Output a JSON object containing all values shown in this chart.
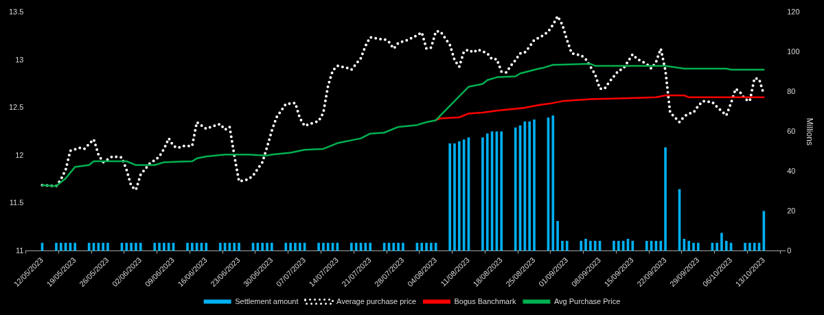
{
  "chart_data": {
    "type": "line",
    "y2label": "Millions",
    "legend": "bottom",
    "xlim": [
      "2023-05-12",
      "2023-10-14"
    ],
    "xticks": [
      {
        "value": "2023-05-12",
        "label": "12/05/2023"
      },
      {
        "value": "2023-05-19",
        "label": "19/05/2023"
      },
      {
        "value": "2023-05-26",
        "label": "26/05/2023"
      },
      {
        "value": "2023-06-02",
        "label": "02/06/2023"
      },
      {
        "value": "2023-06-09",
        "label": "09/06/2023"
      },
      {
        "value": "2023-06-16",
        "label": "16/06/2023"
      },
      {
        "value": "2023-06-23",
        "label": "23/06/2023"
      },
      {
        "value": "2023-06-30",
        "label": "30/06/2023"
      },
      {
        "value": "2023-07-07",
        "label": "07/07/2023"
      },
      {
        "value": "2023-07-14",
        "label": "14/07/2023"
      },
      {
        "value": "2023-07-21",
        "label": "21/07/2023"
      },
      {
        "value": "2023-07-28",
        "label": "28/07/2023"
      },
      {
        "value": "2023-08-04",
        "label": "04/08/2023"
      },
      {
        "value": "2023-08-11",
        "label": "11/08/2023"
      },
      {
        "value": "2023-08-18",
        "label": "18/08/2023"
      },
      {
        "value": "2023-08-25",
        "label": "25/08/2023"
      },
      {
        "value": "2023-09-01",
        "label": "01/09/2023"
      },
      {
        "value": "2023-09-08",
        "label": "08/09/2023"
      },
      {
        "value": "2023-09-15",
        "label": "15/09/2023"
      },
      {
        "value": "2023-09-22",
        "label": "22/09/2023"
      },
      {
        "value": "2023-09-29",
        "label": "29/09/2023"
      },
      {
        "value": "2023-10-06",
        "label": "06/10/2023"
      },
      {
        "value": "2023-10-13",
        "label": "13/10/2023"
      }
    ],
    "ylim": [
      11,
      13.5
    ],
    "yticks": [
      11,
      11.5,
      12,
      12.5,
      13,
      13.5
    ],
    "y2lim": [
      0,
      120
    ],
    "y2ticks": [
      0,
      20,
      40,
      60,
      80,
      100,
      120
    ],
    "series": [
      {
        "name": "Settlement amount",
        "type": "bar",
        "axis": "y2",
        "color": "#00b0f0",
        "x": [
          "2023-05-12",
          "2023-05-15",
          "2023-05-16",
          "2023-05-17",
          "2023-05-18",
          "2023-05-19",
          "2023-05-22",
          "2023-05-23",
          "2023-05-24",
          "2023-05-25",
          "2023-05-26",
          "2023-05-29",
          "2023-05-30",
          "2023-05-31",
          "2023-06-01",
          "2023-06-02",
          "2023-06-05",
          "2023-06-06",
          "2023-06-07",
          "2023-06-08",
          "2023-06-09",
          "2023-06-12",
          "2023-06-13",
          "2023-06-14",
          "2023-06-15",
          "2023-06-16",
          "2023-06-19",
          "2023-06-20",
          "2023-06-21",
          "2023-06-22",
          "2023-06-23",
          "2023-06-26",
          "2023-06-27",
          "2023-06-28",
          "2023-06-29",
          "2023-06-30",
          "2023-07-03",
          "2023-07-04",
          "2023-07-05",
          "2023-07-06",
          "2023-07-07",
          "2023-07-10",
          "2023-07-11",
          "2023-07-12",
          "2023-07-13",
          "2023-07-14",
          "2023-07-17",
          "2023-07-18",
          "2023-07-19",
          "2023-07-20",
          "2023-07-21",
          "2023-07-24",
          "2023-07-25",
          "2023-07-26",
          "2023-07-27",
          "2023-07-28",
          "2023-07-31",
          "2023-08-01",
          "2023-08-02",
          "2023-08-03",
          "2023-08-04",
          "2023-08-07",
          "2023-08-08",
          "2023-08-09",
          "2023-08-10",
          "2023-08-11",
          "2023-08-14",
          "2023-08-15",
          "2023-08-16",
          "2023-08-17",
          "2023-08-18",
          "2023-08-21",
          "2023-08-22",
          "2023-08-23",
          "2023-08-24",
          "2023-08-25",
          "2023-08-28",
          "2023-08-29",
          "2023-08-30",
          "2023-08-31",
          "2023-09-01",
          "2023-09-04",
          "2023-09-05",
          "2023-09-06",
          "2023-09-07",
          "2023-09-08",
          "2023-09-11",
          "2023-09-12",
          "2023-09-13",
          "2023-09-14",
          "2023-09-15",
          "2023-09-18",
          "2023-09-19",
          "2023-09-20",
          "2023-09-21",
          "2023-09-22",
          "2023-09-25",
          "2023-09-26",
          "2023-09-27",
          "2023-09-28",
          "2023-09-29",
          "2023-10-02",
          "2023-10-03",
          "2023-10-04",
          "2023-10-05",
          "2023-10-06",
          "2023-10-09",
          "2023-10-10",
          "2023-10-11",
          "2023-10-12",
          "2023-10-13"
        ],
        "values": [
          4,
          4,
          4,
          4,
          4,
          4,
          4,
          4,
          4,
          4,
          4,
          4,
          4,
          4,
          4,
          4,
          4,
          4,
          4,
          4,
          4,
          4,
          4,
          4,
          4,
          4,
          4,
          4,
          4,
          4,
          4,
          4,
          4,
          4,
          4,
          4,
          4,
          4,
          4,
          4,
          4,
          4,
          4,
          4,
          4,
          4,
          4,
          4,
          4,
          4,
          4,
          4,
          4,
          4,
          4,
          4,
          4,
          4,
          4,
          4,
          4,
          54,
          54,
          55,
          56,
          57,
          57,
          59,
          60,
          60,
          60,
          62,
          63,
          65,
          65,
          66,
          67,
          68,
          15,
          5,
          5,
          5,
          6,
          5,
          5,
          5,
          5,
          5,
          5,
          6,
          5,
          5,
          5,
          5,
          5,
          52,
          31,
          6,
          5,
          4,
          4,
          4,
          4,
          9,
          5,
          4,
          4,
          4,
          4,
          4,
          20
        ]
      },
      {
        "name": "Average purchase price",
        "line_style": "dotted",
        "color": "#ffffff",
        "x": [
          "2023-05-12",
          "2023-05-15",
          "2023-05-16",
          "2023-05-17",
          "2023-05-18",
          "2023-05-20",
          "2023-05-21",
          "2023-05-23",
          "2023-05-24",
          "2023-05-25",
          "2023-05-27",
          "2023-05-29",
          "2023-05-30",
          "2023-05-31",
          "2023-06-01",
          "2023-06-02",
          "2023-06-04",
          "2023-06-05",
          "2023-06-06",
          "2023-06-07",
          "2023-06-08",
          "2023-06-09",
          "2023-06-10",
          "2023-06-11",
          "2023-06-13",
          "2023-06-14",
          "2023-06-16",
          "2023-06-17",
          "2023-06-19",
          "2023-06-20",
          "2023-06-21",
          "2023-06-22",
          "2023-06-23",
          "2023-06-25",
          "2023-06-26",
          "2023-06-28",
          "2023-06-29",
          "2023-06-30",
          "2023-07-01",
          "2023-07-03",
          "2023-07-05",
          "2023-07-06",
          "2023-07-07",
          "2023-07-08",
          "2023-07-10",
          "2023-07-11",
          "2023-07-12",
          "2023-07-13",
          "2023-07-14",
          "2023-07-16",
          "2023-07-17",
          "2023-07-18",
          "2023-07-19",
          "2023-07-20",
          "2023-07-21",
          "2023-07-23",
          "2023-07-24",
          "2023-07-25",
          "2023-07-26",
          "2023-07-27",
          "2023-07-29",
          "2023-07-31",
          "2023-08-01",
          "2023-08-02",
          "2023-08-03",
          "2023-08-04",
          "2023-08-05",
          "2023-08-06",
          "2023-08-07",
          "2023-08-08",
          "2023-08-09",
          "2023-08-10",
          "2023-08-11",
          "2023-08-12",
          "2023-08-13",
          "2023-08-15",
          "2023-08-16",
          "2023-08-17",
          "2023-08-18",
          "2023-08-19",
          "2023-08-20",
          "2023-08-21",
          "2023-08-22",
          "2023-08-23",
          "2023-08-24",
          "2023-08-25",
          "2023-08-27",
          "2023-08-28",
          "2023-08-29",
          "2023-08-30",
          "2023-08-31",
          "2023-09-01",
          "2023-09-02",
          "2023-09-04",
          "2023-09-05",
          "2023-09-06",
          "2023-09-07",
          "2023-09-08",
          "2023-09-09",
          "2023-09-10",
          "2023-09-11",
          "2023-09-12",
          "2023-09-13",
          "2023-09-15",
          "2023-09-16",
          "2023-09-18",
          "2023-09-19",
          "2023-09-20",
          "2023-09-21",
          "2023-09-22",
          "2023-09-23",
          "2023-09-24",
          "2023-09-25",
          "2023-09-26",
          "2023-09-27",
          "2023-09-28",
          "2023-09-29",
          "2023-09-30",
          "2023-10-02",
          "2023-10-03",
          "2023-10-05",
          "2023-10-06",
          "2023-10-07",
          "2023-10-08",
          "2023-10-09",
          "2023-10-10",
          "2023-10-11",
          "2023-10-12",
          "2023-10-13"
        ],
        "values": [
          11.69,
          11.68,
          11.75,
          11.85,
          12.05,
          12.08,
          12.07,
          12.17,
          12.01,
          11.93,
          11.99,
          11.98,
          11.85,
          11.68,
          11.64,
          11.8,
          11.92,
          11.95,
          11.99,
          12.07,
          12.18,
          12.1,
          12.08,
          12.1,
          12.1,
          12.35,
          12.28,
          12.3,
          12.33,
          12.27,
          12.3,
          12.0,
          11.73,
          11.75,
          11.79,
          11.93,
          12.09,
          12.26,
          12.4,
          12.54,
          12.55,
          12.39,
          12.31,
          12.33,
          12.36,
          12.45,
          12.73,
          12.89,
          12.94,
          12.92,
          12.9,
          12.96,
          13.02,
          13.15,
          13.24,
          13.22,
          13.22,
          13.19,
          13.12,
          13.18,
          13.21,
          13.26,
          13.29,
          13.12,
          13.13,
          13.3,
          13.3,
          13.23,
          13.16,
          13.0,
          12.93,
          13.09,
          13.11,
          13.08,
          13.11,
          13.07,
          13.01,
          13.01,
          12.88,
          12.87,
          12.94,
          13.0,
          13.07,
          13.08,
          13.14,
          13.21,
          13.26,
          13.3,
          13.37,
          13.46,
          13.37,
          13.21,
          13.07,
          13.05,
          13.01,
          12.93,
          12.85,
          12.7,
          12.7,
          12.77,
          12.83,
          12.89,
          12.91,
          13.06,
          13.01,
          12.96,
          12.91,
          12.98,
          13.12,
          12.89,
          12.45,
          12.4,
          12.35,
          12.41,
          12.44,
          12.45,
          12.52,
          12.57,
          12.56,
          12.51,
          12.42,
          12.55,
          12.7,
          12.66,
          12.59,
          12.57,
          12.81,
          12.8,
          12.64
        ]
      },
      {
        "name": "Bogus Banchmark",
        "color": "#ff0000",
        "x": [
          "2023-08-04",
          "2023-08-05",
          "2023-08-09",
          "2023-08-11",
          "2023-08-14",
          "2023-08-17",
          "2023-08-23",
          "2023-08-26",
          "2023-08-29",
          "2023-08-31",
          "2023-09-06",
          "2023-09-13",
          "2023-09-20",
          "2023-09-22",
          "2023-09-26",
          "2023-09-27",
          "2023-10-13"
        ],
        "values": [
          12.37,
          12.39,
          12.4,
          12.44,
          12.45,
          12.47,
          12.5,
          12.53,
          12.55,
          12.57,
          12.59,
          12.6,
          12.61,
          12.63,
          12.63,
          12.61,
          12.61
        ]
      },
      {
        "name": "Avg Purchase Price",
        "color": "#00b050",
        "x": [
          "2023-05-12",
          "2023-05-15",
          "2023-05-17",
          "2023-05-19",
          "2023-05-22",
          "2023-05-23",
          "2023-05-26",
          "2023-05-30",
          "2023-06-01",
          "2023-06-05",
          "2023-06-07",
          "2023-06-13",
          "2023-06-14",
          "2023-06-16",
          "2023-06-20",
          "2023-06-25",
          "2023-06-29",
          "2023-06-30",
          "2023-07-04",
          "2023-07-07",
          "2023-07-11",
          "2023-07-12",
          "2023-07-14",
          "2023-07-17",
          "2023-07-19",
          "2023-07-21",
          "2023-07-24",
          "2023-07-27",
          "2023-07-31",
          "2023-08-02",
          "2023-08-04",
          "2023-08-11",
          "2023-08-14",
          "2023-08-15",
          "2023-08-17",
          "2023-08-21",
          "2023-08-22",
          "2023-08-26",
          "2023-08-27",
          "2023-08-29",
          "2023-09-06",
          "2023-09-07",
          "2023-09-22",
          "2023-09-26",
          "2023-10-05",
          "2023-10-06",
          "2023-10-13"
        ],
        "values": [
          11.69,
          11.68,
          11.76,
          11.88,
          11.9,
          11.94,
          11.94,
          11.94,
          11.9,
          11.9,
          11.93,
          11.94,
          11.97,
          11.99,
          12.01,
          12.01,
          12.0,
          12.01,
          12.03,
          12.06,
          12.07,
          12.09,
          12.13,
          12.16,
          12.18,
          12.23,
          12.24,
          12.3,
          12.32,
          12.35,
          12.37,
          12.72,
          12.75,
          12.79,
          12.82,
          12.83,
          12.86,
          12.91,
          12.92,
          12.95,
          12.96,
          12.94,
          12.94,
          12.91,
          12.91,
          12.9,
          12.9
        ]
      }
    ]
  }
}
